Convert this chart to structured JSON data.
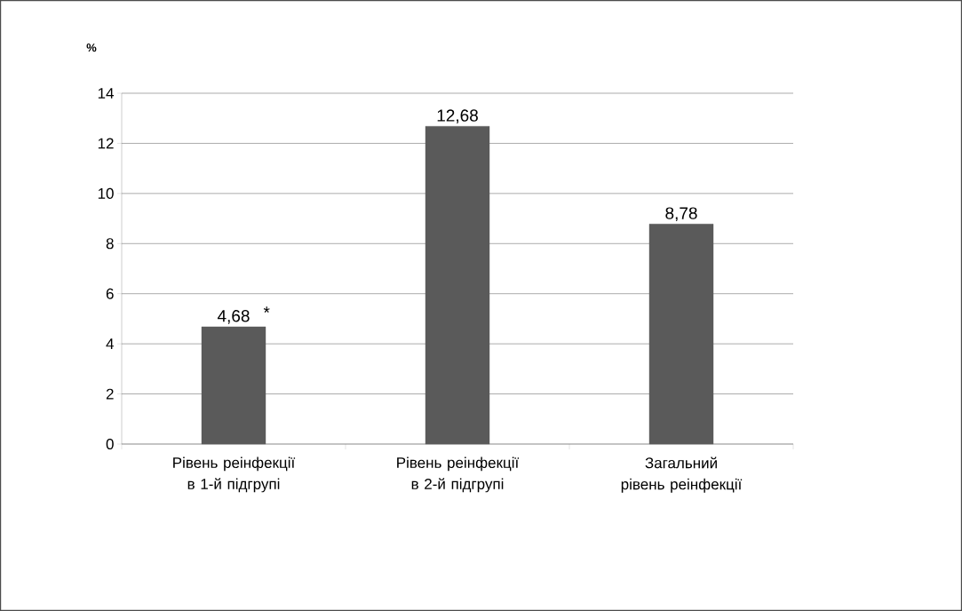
{
  "chart_data": {
    "type": "bar",
    "ylabel": "%",
    "categories": [
      "Рівень реінфекції в 1-й підгрупі",
      "Рівень реінфекції в 2-й підгрупі",
      "Загальний рівень реінфекції"
    ],
    "values": [
      4.68,
      12.68,
      8.78
    ],
    "color": "#5a5a5a",
    "value_labels": [
      "4,68",
      "12,68",
      "8,78"
    ],
    "annotations": [
      {
        "text": "*",
        "x": "Рівень реінфекції в 1-й підгрупі",
        "y": 4.68
      }
    ],
    "ylim": [
      0,
      14
    ],
    "yticks": [
      0,
      2,
      4,
      6,
      8,
      10,
      12,
      14
    ],
    "grid": "y"
  }
}
